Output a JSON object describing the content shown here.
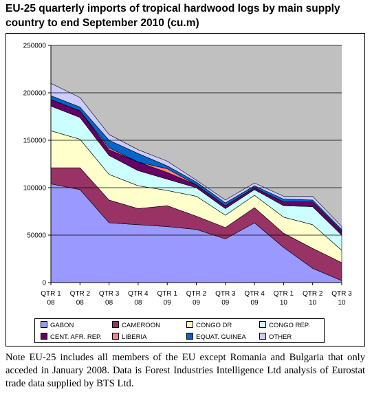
{
  "title": "EU-25 quarterly imports of tropical hardwood logs by main supply country to end September 2010 (cu.m)",
  "note": "Note EU-25 includes all members of the EU except Romania and Bulgaria that only acceded in January 2008. Data is Forest Industries Intelligence Ltd analysis of Eurostat trade data supplied by BTS Ltd.",
  "chart_data": {
    "type": "area",
    "stacked": true,
    "categories": [
      [
        "QTR 1",
        "08"
      ],
      [
        "QTR 2",
        "08"
      ],
      [
        "QTR 3",
        "08"
      ],
      [
        "QTR 4",
        "08"
      ],
      [
        "QTR 1",
        "09"
      ],
      [
        "QTR 2",
        "09"
      ],
      [
        "QTR 3",
        "09"
      ],
      [
        "QTR 4",
        "09"
      ],
      [
        "QTR 1",
        "10"
      ],
      [
        "QTR 2",
        "10"
      ],
      [
        "QTR 3",
        "10"
      ]
    ],
    "ylim": [
      0,
      250000
    ],
    "yticks": [
      0,
      50000,
      100000,
      150000,
      200000,
      250000
    ],
    "ytick_labels": [
      "0",
      "50000",
      "100000",
      "150000",
      "200000",
      "250000"
    ],
    "grid": true,
    "plot_background": "#C0C0C0",
    "legend_position": "bottom",
    "series": [
      {
        "name": "GABON",
        "color": "#9999FF",
        "values": [
          104000,
          98000,
          63000,
          61000,
          59000,
          56000,
          46000,
          63000,
          37000,
          15000,
          2000
        ]
      },
      {
        "name": "CAMEROON",
        "color": "#993366",
        "values": [
          17000,
          23000,
          24000,
          17000,
          22000,
          14000,
          12000,
          16000,
          15000,
          21000,
          19000
        ]
      },
      {
        "name": "CONGO DR",
        "color": "#FFFFCC",
        "values": [
          39000,
          30000,
          27000,
          24000,
          16000,
          21000,
          13000,
          13000,
          17000,
          25000,
          13000
        ]
      },
      {
        "name": "CONGO REP.",
        "color": "#CCFFFF",
        "values": [
          26000,
          23000,
          20000,
          16000,
          12000,
          9000,
          7000,
          6000,
          12000,
          19000,
          16000
        ]
      },
      {
        "name": "CENT. AFR. REP.",
        "color": "#660066",
        "values": [
          7000,
          7000,
          6000,
          9000,
          7000,
          3000,
          3000,
          2000,
          4000,
          5000,
          4000
        ]
      },
      {
        "name": "LIBERIA",
        "color": "#FF8080",
        "values": [
          0,
          0,
          2000,
          0,
          4000,
          0,
          0,
          0,
          0,
          0,
          0
        ]
      },
      {
        "name": "EQUAT. GUINEA",
        "color": "#0066CC",
        "values": [
          4000,
          4000,
          8000,
          9000,
          3000,
          3000,
          3000,
          2000,
          3000,
          2000,
          2000
        ]
      },
      {
        "name": "OTHER",
        "color": "#CCCCFF",
        "values": [
          13000,
          10000,
          6000,
          4000,
          5000,
          2000,
          3000,
          3000,
          3000,
          4000,
          3000
        ]
      }
    ]
  }
}
